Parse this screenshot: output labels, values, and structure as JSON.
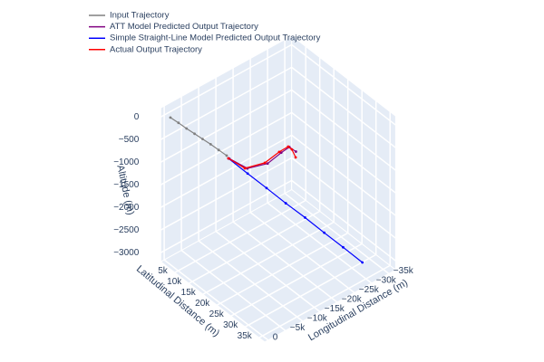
{
  "chart_data": {
    "type": "line3d",
    "x_title": "Latitudinal Distance (m)",
    "y_title": "Longitudinal Distance (m)",
    "z_title": "Altitude (m)",
    "xlim": [
      0,
      37000
    ],
    "ylim": [
      -37000,
      1000
    ],
    "zlim": [
      -3200,
      200
    ],
    "xticks": [
      {
        "value": 5000,
        "label": "5k"
      },
      {
        "value": 10000,
        "label": "10k"
      },
      {
        "value": 15000,
        "label": "15k"
      },
      {
        "value": 20000,
        "label": "20k"
      },
      {
        "value": 25000,
        "label": "25k"
      },
      {
        "value": 30000,
        "label": "30k"
      },
      {
        "value": 35000,
        "label": "35k"
      }
    ],
    "yticks": [
      0,
      {
        "value": -5000,
        "label": "−5k"
      },
      {
        "value": -10000,
        "label": "−10k"
      },
      {
        "value": -15000,
        "label": "−15k"
      },
      {
        "value": -20000,
        "label": "−20k"
      },
      {
        "value": -25000,
        "label": "−25k"
      },
      {
        "value": -30000,
        "label": "−30k"
      },
      {
        "value": -35000,
        "label": "−35k"
      }
    ],
    "zticks": [
      0,
      {
        "value": -500,
        "label": "−500"
      },
      {
        "value": -1000,
        "label": "−1000"
      },
      {
        "value": -1500,
        "label": "−1500"
      },
      {
        "value": -2000,
        "label": "−2000"
      },
      {
        "value": -2500,
        "label": "−2500"
      },
      {
        "value": -3000,
        "label": "−3000"
      }
    ],
    "grid": true,
    "legend": "top-left",
    "series": [
      {
        "name": "Input Trajectory",
        "color": "#808080",
        "x": [
          1600,
          2500,
          3400,
          4300,
          5200,
          6100,
          7000,
          8000
        ],
        "y": [
          -500,
          -2100,
          -3700,
          -5300,
          -6900,
          -8500,
          -10100,
          -11600
        ],
        "z": [
          0,
          -140,
          -290,
          -430,
          -570,
          -710,
          -860,
          -1000
        ]
      },
      {
        "name": "ATT Model Predicted Output Trajectory",
        "color": "#800080",
        "x": [
          9200,
          14500,
          16200,
          15300,
          15000,
          17200
        ],
        "y": [
          -11400,
          -12300,
          -16800,
          -21500,
          -24100,
          -24200
        ],
        "z": [
          -1000,
          -1000,
          -1000,
          -1000,
          -1000,
          -1000
        ]
      },
      {
        "name": "Simple Straight-Line Model Predicted Output Trajectory",
        "color": "#0000ff",
        "x": [
          9000,
          12400,
          15700,
          19100,
          22400,
          25800,
          29100,
          32500
        ],
        "y": [
          -11300,
          -14100,
          -16900,
          -19700,
          -22600,
          -25400,
          -28200,
          -31000
        ],
        "z": [
          -1000,
          -1290,
          -1570,
          -1860,
          -2140,
          -2430,
          -2710,
          -3000
        ]
      },
      {
        "name": "Actual Output Trajectory",
        "color": "#ff0000",
        "x": [
          9000,
          14100,
          15600,
          14800,
          14700,
          16000,
          18700
        ],
        "y": [
          -11300,
          -11900,
          -16500,
          -21300,
          -24000,
          -24000,
          -22900
        ],
        "z": [
          -1000,
          -1000,
          -1000,
          -1000,
          -1000,
          -1000,
          -1000
        ]
      }
    ]
  }
}
